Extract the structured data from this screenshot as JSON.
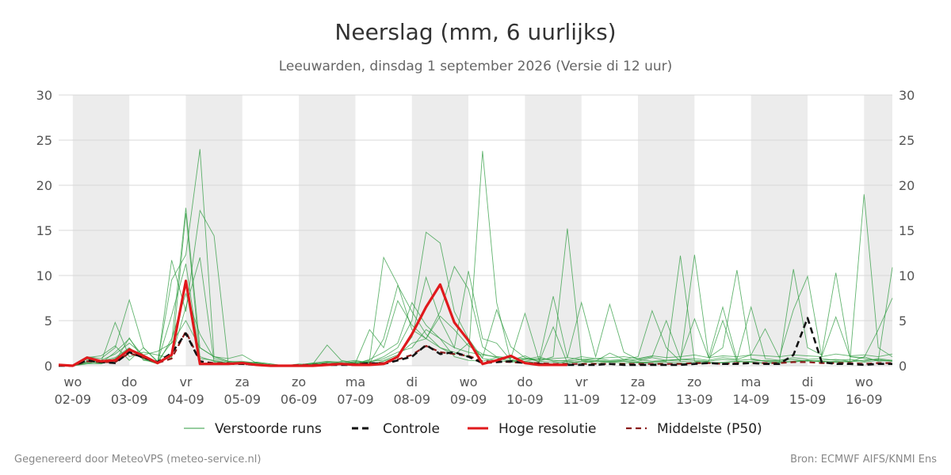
{
  "title": "Neerslag (mm, 6 uurlijks)",
  "subtitle": "Leeuwarden, dinsdag  1 september 2026 (Versie di 12 uur)",
  "footer": {
    "left": "Gegenereerd door MeteoVPS (meteo-service.nl)",
    "right": "Bron: ECMWF AIFS/KNMI Ens"
  },
  "colors": {
    "ensemble": "#2e9b3f",
    "control": "#111111",
    "highres": "#e0191c",
    "median": "#8b1a1a",
    "weekend_band": "#ececec",
    "grid": "#d8d8d8"
  },
  "chart_data": {
    "type": "line",
    "title": "Neerslag (mm, 6 uurlijks)",
    "ylim": [
      0,
      30
    ],
    "yticks": [
      0,
      5,
      10,
      15,
      20,
      25,
      30
    ],
    "xlim": [
      -1,
      58
    ],
    "day_labels": [
      {
        "dow": "wo",
        "date": "02-09"
      },
      {
        "dow": "do",
        "date": "03-09"
      },
      {
        "dow": "vr",
        "date": "04-09"
      },
      {
        "dow": "za",
        "date": "05-09"
      },
      {
        "dow": "zo",
        "date": "06-09"
      },
      {
        "dow": "ma",
        "date": "07-09"
      },
      {
        "dow": "di",
        "date": "08-09"
      },
      {
        "dow": "wo",
        "date": "09-09"
      },
      {
        "dow": "do",
        "date": "10-09"
      },
      {
        "dow": "vr",
        "date": "11-09"
      },
      {
        "dow": "za",
        "date": "12-09"
      },
      {
        "dow": "zo",
        "date": "13-09"
      },
      {
        "dow": "ma",
        "date": "14-09"
      },
      {
        "dow": "di",
        "date": "15-09"
      },
      {
        "dow": "wo",
        "date": "16-09"
      }
    ],
    "legend": [
      {
        "label": "Verstoorde runs",
        "style": "thin-green"
      },
      {
        "label": "Controle",
        "style": "dashed-black"
      },
      {
        "label": "Hoge resolutie",
        "style": "solid-red"
      },
      {
        "label": "Middelste (P50)",
        "style": "dashed-darkred"
      }
    ],
    "series": [
      {
        "name": "Hoge resolutie",
        "x": [
          -1,
          0,
          1,
          2,
          3,
          4,
          5,
          6,
          7,
          8,
          9,
          10,
          11,
          12,
          13,
          14,
          15,
          16,
          17,
          18,
          19,
          20,
          21,
          22,
          23,
          24,
          25,
          26,
          27,
          28,
          29,
          30,
          31,
          32,
          33,
          34,
          35
        ],
        "values": [
          0.1,
          0.0,
          0.9,
          0.5,
          0.6,
          1.8,
          1.1,
          0.3,
          1.2,
          9.4,
          0.2,
          0.2,
          0.2,
          0.3,
          0.1,
          0.0,
          0.0,
          0.0,
          0.0,
          0.1,
          0.2,
          0.1,
          0.1,
          0.2,
          1.0,
          3.5,
          6.5,
          9.0,
          4.8,
          2.8,
          0.2,
          0.6,
          1.1,
          0.3,
          0.1,
          0.1,
          0.1
        ]
      },
      {
        "name": "Controle",
        "x": [
          -1,
          0,
          1,
          2,
          3,
          4,
          5,
          6,
          7,
          8,
          9,
          10,
          11,
          12,
          13,
          14,
          15,
          16,
          17,
          18,
          19,
          20,
          21,
          22,
          23,
          24,
          25,
          26,
          27,
          28,
          29,
          30,
          31,
          32,
          33,
          34,
          35,
          36,
          37,
          38,
          39,
          40,
          41,
          42,
          43,
          44,
          45,
          46,
          47,
          48,
          49,
          50,
          51,
          52,
          53,
          54,
          55,
          56,
          57,
          58
        ],
        "values": [
          0.0,
          0.0,
          0.6,
          0.4,
          0.3,
          1.5,
          0.9,
          0.4,
          1.4,
          3.6,
          0.5,
          0.2,
          0.2,
          0.2,
          0.1,
          0.0,
          0.0,
          0.0,
          0.0,
          0.1,
          0.1,
          0.1,
          0.3,
          0.2,
          0.6,
          1.0,
          2.3,
          1.3,
          1.5,
          1.0,
          0.3,
          0.4,
          0.5,
          0.3,
          0.2,
          0.1,
          0.1,
          0.1,
          0.1,
          0.2,
          0.1,
          0.1,
          0.1,
          0.1,
          0.1,
          0.2,
          0.3,
          0.2,
          0.2,
          0.3,
          0.2,
          0.2,
          1.2,
          5.3,
          0.4,
          0.2,
          0.2,
          0.1,
          0.2,
          0.2
        ]
      },
      {
        "name": "Middelste (P50)",
        "x": [
          -1,
          0,
          1,
          2,
          3,
          4,
          5,
          6,
          7,
          8,
          9,
          10,
          11,
          12,
          13,
          14,
          15,
          16,
          17,
          18,
          19,
          20,
          21,
          22,
          23,
          24,
          25,
          26,
          27,
          28,
          29,
          30,
          31,
          32,
          33,
          34,
          35,
          36,
          37,
          38,
          39,
          40,
          41,
          42,
          43,
          44,
          45,
          46,
          47,
          48,
          49,
          50,
          51,
          52,
          53,
          54,
          55,
          56,
          57,
          58
        ],
        "values": [
          0.0,
          0.0,
          0.5,
          0.4,
          0.4,
          1.4,
          0.9,
          0.3,
          0.8,
          3.8,
          0.5,
          0.3,
          0.3,
          0.2,
          0.1,
          0.0,
          0.0,
          0.1,
          0.1,
          0.2,
          0.2,
          0.2,
          0.3,
          0.3,
          0.7,
          1.2,
          2.2,
          1.5,
          1.3,
          1.1,
          0.5,
          0.5,
          0.4,
          0.3,
          0.3,
          0.2,
          0.2,
          0.2,
          0.2,
          0.2,
          0.2,
          0.2,
          0.2,
          0.2,
          0.2,
          0.3,
          0.3,
          0.2,
          0.3,
          0.3,
          0.3,
          0.3,
          0.4,
          0.4,
          0.3,
          0.3,
          0.3,
          0.2,
          0.3,
          0.3
        ]
      }
    ],
    "ensemble": {
      "name": "Verstoorde runs",
      "x_start": -1,
      "members": [
        [
          0.0,
          0.0,
          1.0,
          0.8,
          2.0,
          7.3,
          2.0,
          0.5,
          2.6,
          17.5,
          2.0,
          1.0,
          0.8,
          1.2,
          0.3,
          0.0,
          0.0,
          0.1,
          0.3,
          0.2,
          0.2,
          0.5,
          0.4,
          1.0,
          2.0,
          5.0,
          14.8,
          13.6,
          6.0,
          3.0,
          0.8,
          0.6,
          0.4,
          0.5,
          0.3,
          0.2,
          0.5,
          0.3,
          0.5,
          0.4,
          0.3,
          0.4,
          0.2,
          0.4,
          0.3,
          0.2,
          0.3,
          0.4,
          0.5,
          0.4,
          0.3,
          0.3,
          0.5,
          0.6,
          0.4,
          0.5,
          0.4,
          1.0,
          0.5,
          0.6
        ],
        [
          0.0,
          0.0,
          0.5,
          0.3,
          1.5,
          3.0,
          1.0,
          0.3,
          9.5,
          12.3,
          24.0,
          1.0,
          0.5,
          0.4,
          0.3,
          0.1,
          0.0,
          0.1,
          0.2,
          0.4,
          0.3,
          0.3,
          0.6,
          12.0,
          9.0,
          4.0,
          3.0,
          2.0,
          1.5,
          1.0,
          23.8,
          7.0,
          0.5,
          0.8,
          0.5,
          0.4,
          0.3,
          0.5,
          0.3,
          0.4,
          0.5,
          0.3,
          0.4,
          0.5,
          12.2,
          0.5,
          0.4,
          0.3,
          0.5,
          0.4,
          0.3,
          0.4,
          0.5,
          0.6,
          0.5,
          0.4,
          0.5,
          19.0,
          2.0,
          1.0
        ],
        [
          0.0,
          0.0,
          0.3,
          0.5,
          0.9,
          2.0,
          0.8,
          0.2,
          11.7,
          6.0,
          17.2,
          14.4,
          0.3,
          0.2,
          0.4,
          0.2,
          0.0,
          0.1,
          0.3,
          0.5,
          0.4,
          0.6,
          0.3,
          3.0,
          8.9,
          6.0,
          3.5,
          2.0,
          1.2,
          2.5,
          0.9,
          6.2,
          2.1,
          0.9,
          0.5,
          1.0,
          15.2,
          0.6,
          0.5,
          1.4,
          0.7,
          1.0,
          6.1,
          2.0,
          0.5,
          12.3,
          0.9,
          2.0,
          10.6,
          0.8,
          0.5,
          0.4,
          10.7,
          2.0,
          1.2,
          10.3,
          1.0,
          0.8,
          0.6,
          10.9
        ],
        [
          0.0,
          0.0,
          0.7,
          0.4,
          4.8,
          1.0,
          1.5,
          1.2,
          0.8,
          16.9,
          1.0,
          0.5,
          0.3,
          0.2,
          0.2,
          0.1,
          0.0,
          0.1,
          0.2,
          2.3,
          0.6,
          0.3,
          4.0,
          2.0,
          7.2,
          4.5,
          3.0,
          6.0,
          11.0,
          8.5,
          2.1,
          1.0,
          0.8,
          5.8,
          0.6,
          7.7,
          0.9,
          7.0,
          1.0,
          6.8,
          1.5,
          0.7,
          1.0,
          5.0,
          0.8,
          5.2,
          0.9,
          6.5,
          0.7,
          1.2,
          4.1,
          0.9,
          6.2,
          9.9,
          1.0,
          5.4,
          1.0,
          0.9,
          4.0,
          7.5
        ],
        [
          0.0,
          0.0,
          0.2,
          0.3,
          0.5,
          3.1,
          0.6,
          0.4,
          5.6,
          11.3,
          0.8,
          0.6,
          0.3,
          0.4,
          0.3,
          0.1,
          0.0,
          0.0,
          0.1,
          0.2,
          0.1,
          0.4,
          0.2,
          0.5,
          1.0,
          3.2,
          9.8,
          5.1,
          2.0,
          10.5,
          3.0,
          2.5,
          0.6,
          1.1,
          0.4,
          4.3,
          0.3,
          0.5,
          0.5,
          0.5,
          0.5,
          0.4,
          0.4,
          0.6,
          0.5,
          0.4,
          0.5,
          5.0,
          0.4,
          0.5,
          0.6,
          0.5,
          0.4,
          0.6,
          0.5,
          0.4,
          0.5,
          0.4,
          0.6,
          0.5
        ],
        [
          0.0,
          0.0,
          0.9,
          1.1,
          2.2,
          0.6,
          2.0,
          0.4,
          1.0,
          6.5,
          12.0,
          0.4,
          0.2,
          0.3,
          0.4,
          0.2,
          0.0,
          0.0,
          0.2,
          0.1,
          0.5,
          0.2,
          0.7,
          1.5,
          2.5,
          7.0,
          4.5,
          3.0,
          1.0,
          0.6,
          0.5,
          0.9,
          0.4,
          0.7,
          1.0,
          0.5,
          0.6,
          1.0,
          0.8,
          0.6,
          0.7,
          0.5,
          0.9,
          0.6,
          0.7,
          0.8,
          0.6,
          0.9,
          0.7,
          6.5,
          0.8,
          0.6,
          0.9,
          0.7,
          0.8,
          0.6,
          0.7,
          0.5,
          0.8,
          0.6
        ],
        [
          0.0,
          0.0,
          0.4,
          0.6,
          1.3,
          2.5,
          1.2,
          1.6,
          2.5,
          5.0,
          2.0,
          1.0,
          0.5,
          0.3,
          0.2,
          0.1,
          0.0,
          0.1,
          0.2,
          0.3,
          0.2,
          0.3,
          0.4,
          0.8,
          1.5,
          2.0,
          4.0,
          3.0,
          2.0,
          1.5,
          1.2,
          1.0,
          0.9,
          0.8,
          0.7,
          0.8,
          0.9,
          0.7,
          0.8,
          0.9,
          1.0,
          0.8,
          1.1,
          0.9,
          1.0,
          1.2,
          0.9,
          1.1,
          1.0,
          1.2,
          1.1,
          1.0,
          1.2,
          1.1,
          1.0,
          1.3,
          1.1,
          1.2,
          1.0,
          1.3
        ],
        [
          0.0,
          0.0,
          0.3,
          0.2,
          0.8,
          1.8,
          0.7,
          0.2,
          3.0,
          8.0,
          3.5,
          0.8,
          0.4,
          0.5,
          0.3,
          0.1,
          0.0,
          0.2,
          0.1,
          0.4,
          0.3,
          0.2,
          0.5,
          0.6,
          1.2,
          2.5,
          3.0,
          5.5,
          4.0,
          2.2,
          1.3,
          0.9,
          0.6,
          0.5,
          0.8,
          0.6,
          0.5,
          0.7,
          0.6,
          0.5,
          0.6,
          0.7,
          0.5,
          0.6,
          0.7,
          0.6,
          0.5,
          0.7,
          0.6,
          0.7,
          0.5,
          0.6,
          0.7,
          0.5,
          0.6,
          0.7,
          0.5,
          0.6,
          0.7,
          0.5
        ]
      ]
    }
  }
}
